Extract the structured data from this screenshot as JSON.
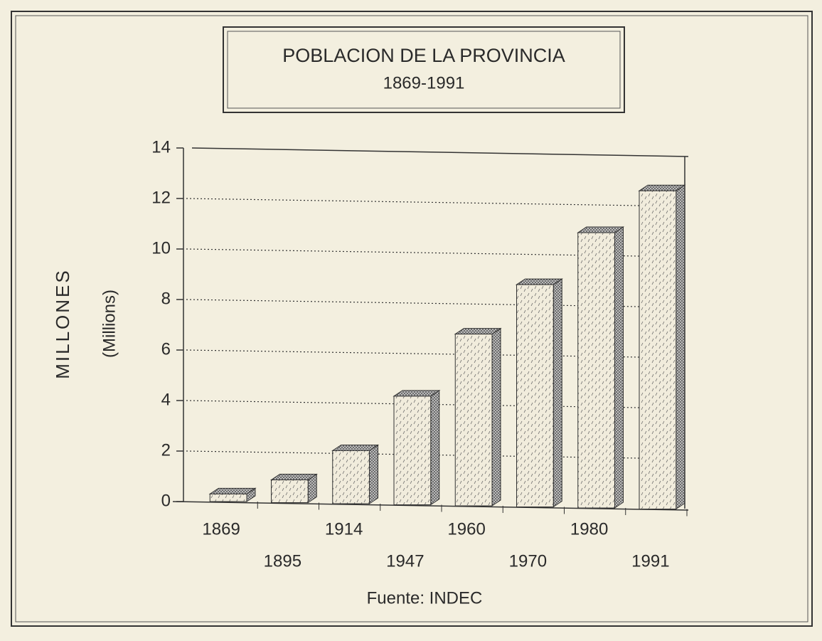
{
  "chart_data": {
    "type": "bar3d",
    "title": "POBLACION DE LA PROVINCIA",
    "subtitle": "1869-1991",
    "y_label": "MILLONES",
    "y_label_2": "(Millions)",
    "source": "Fuente: INDEC",
    "categories": [
      "1869",
      "1895",
      "1914",
      "1947",
      "1960",
      "1970",
      "1980",
      "1991"
    ],
    "values": [
      0.3,
      0.9,
      2.1,
      4.3,
      6.8,
      8.8,
      10.9,
      12.6
    ],
    "color": "#f1ecdc",
    "ylim": [
      0,
      14
    ],
    "yticks": [
      0,
      2,
      4,
      6,
      8,
      10,
      12,
      14
    ],
    "grid": true
  }
}
